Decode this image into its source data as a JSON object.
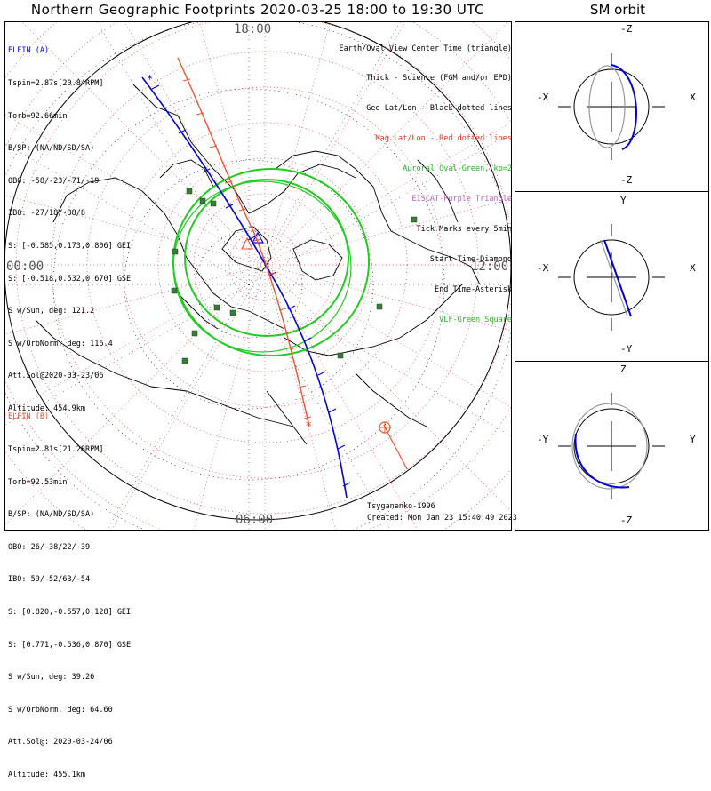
{
  "title": "Northern Geographic Footprints 2020-03-25 18:00 to 19:30 UTC",
  "sm_title": "SM orbit",
  "colors": {
    "elfin_a": "#0000e0",
    "elfin_b": "#f05030",
    "grid": "#e05050",
    "oval": "#22cc22",
    "vlf": "#3a7a3a",
    "coast": "#000000"
  },
  "polar_plot": {
    "time_labels": {
      "top": "18:00",
      "left": "00:00",
      "right": "12:00",
      "bottom": "06:00"
    }
  },
  "legend": [
    {
      "text": "Earth/Oval View Center Time (triangle)",
      "color": "#000000"
    },
    {
      "text": "Thick - Science (FGM and/or EPD)",
      "color": "#000000"
    },
    {
      "text": "Geo Lat/Lon - Black dotted lines",
      "color": "#000000"
    },
    {
      "text": "Mag Lat/Lon - Red dotted lines",
      "color": "#f03020"
    },
    {
      "text": "Auroral Oval-Green, kp=2",
      "color": "#22bb22"
    },
    {
      "text": "EISCAT-Purple Triangle",
      "color": "#c060c0"
    },
    {
      "text": "Tick Marks every 5min",
      "color": "#000000"
    },
    {
      "text": "Start Time-Diamond",
      "color": "#000000"
    },
    {
      "text": "End Time-Asterisk",
      "color": "#000000"
    },
    {
      "text": "VLF-Green Square",
      "color": "#22bb22"
    }
  ],
  "elfin_a": {
    "header": "ELFIN (A)",
    "lines": [
      "Tspin=2.87s[20.84RPM]",
      "Torb=92.66min",
      "B/SP: (NA/ND/SD/SA)",
      "OBO: -58/-23/-71/-19",
      "IBO: -27/18/-38/8",
      "S: [-0.585,0.173,0.806] GEI",
      "S: [-0.518,0.532,0.670] GSE",
      "S w/Sun, deg: 121.2",
      "S w/OrbNorm, deg: 116.4",
      "Att.Sol@2020-03-23/06",
      "Altitude: 454.9km"
    ]
  },
  "elfin_b": {
    "header": "ELFIN (B)",
    "lines": [
      "Tspin=2.81s[21.28RPM]",
      "Torb=92.53min",
      "B/SP: (NA/ND/SD/SA)",
      "OBO: 26/-38/22/-39",
      "IBO: 59/-52/63/-54",
      "S: [0.820,-0.557,0.128] GEI",
      "S: [0.771,-0.536,0.870] GSE",
      "S w/Sun, deg: 39.26",
      "S w/OrbNorm, deg: 64.60",
      "Att.Sol@: 2020-03-24/06",
      "Altitude: 455.1km"
    ]
  },
  "footer": {
    "model": "Tsyganenko-1996",
    "created": "Created: Mon Jan 23 15:40:49 2023"
  },
  "sm_panels": [
    {
      "top": "-Z",
      "bottom": "-Z",
      "left": "-X",
      "right": "X"
    },
    {
      "top": "Y",
      "bottom": "-Y",
      "left": "-X",
      "right": "X"
    },
    {
      "top": "Z",
      "bottom": "-Z",
      "left": "-Y",
      "right": "Y"
    }
  ],
  "chart_data": [
    {
      "type": "scatter",
      "title": "Northern Geographic Footprints 2020-03-25 18:00 to 19:30 UTC",
      "projection": "north polar, MLT around edge",
      "axis_labels": [
        "18:00",
        "00:00",
        "12:00",
        "06:00"
      ],
      "series": [
        {
          "name": "ELFIN (A)",
          "color": "#0000e0",
          "notes": "footprint track 5-min ticks"
        },
        {
          "name": "ELFIN (B)",
          "color": "#f05030",
          "notes": "footprint track 5-min ticks"
        },
        {
          "name": "Auroral Oval-Green, kp=2",
          "color": "#22cc22"
        }
      ]
    },
    {
      "type": "line",
      "title": "SM orbit",
      "series": [
        {
          "name": "ELFIN (A)",
          "color": "#0000e0"
        },
        {
          "name": "ELFIN (B)",
          "color": "#f05030"
        }
      ]
    }
  ]
}
